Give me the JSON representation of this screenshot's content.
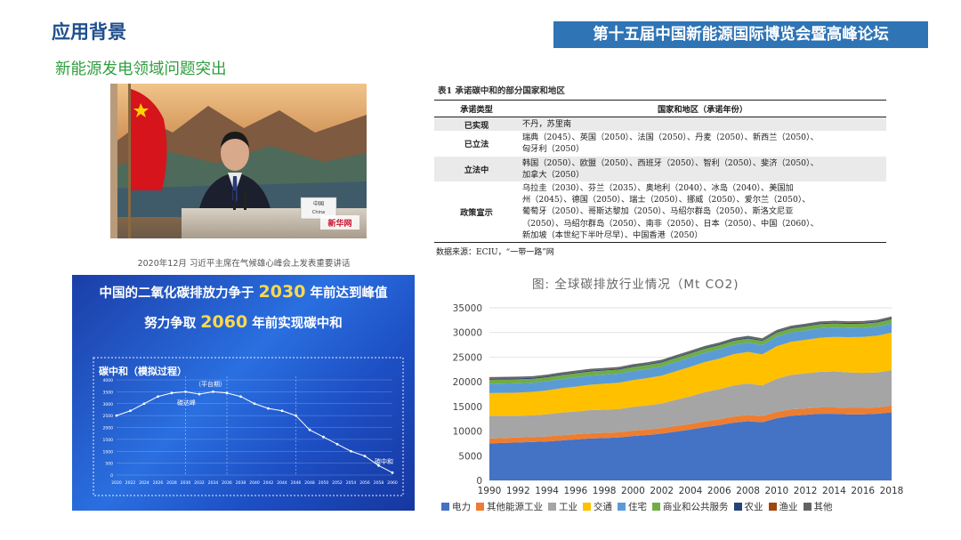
{
  "header": {
    "left_title": "应用背景",
    "right_title": "第十五届中国新能源国际博览会暨高峰论坛"
  },
  "subtitle": "新能源发电领域问题突出",
  "photo": {
    "caption": "2020年12月 习近平主席在气候雄心峰会上发表重要讲话",
    "nameplate": "中国\nChina",
    "watermark": "新华网"
  },
  "table": {
    "title": "表1  承诺碳中和的部分国家和地区",
    "headers": [
      "承诺类型",
      "国家和地区（承诺年份）"
    ],
    "rows": [
      {
        "type": "已实现",
        "lines": [
          "不丹，苏里南"
        ]
      },
      {
        "type": "已立法",
        "lines": [
          "瑞典（2045）、英国（2050）、法国（2050）、丹麦（2050）、新西兰（2050）、",
          "匈牙利（2050）"
        ]
      },
      {
        "type": "立法中",
        "lines": [
          "韩国（2050）、欧盟（2050）、西班牙（2050）、智利（2050）、斐济（2050）、",
          "加拿大（2050）"
        ]
      },
      {
        "type": "政策宣示",
        "lines": [
          "乌拉圭（2030）、芬兰（2035）、奥地利（2040）、冰岛（2040）、美国加",
          "州（2045）、德国（2050）、瑞士（2050）、挪威（2050）、爱尔兰（2050）、",
          "葡萄牙（2050）、哥斯达黎加（2050）、马绍尔群岛（2050）、斯洛文尼亚",
          "（2050）、马绍尔群岛（2050）、南非（2050）、日本（2050）、中国（2060）、",
          "新加坡（本世纪下半叶尽早）、中国香港（2050）"
        ]
      }
    ],
    "source": "数据来源：ECIU，“一带一路”网"
  },
  "blue_panel": {
    "line1_pre": "中国的二氧化碳排放力争于",
    "line1_num": "2030",
    "line1_post": "年前达到峰值",
    "line2_pre": "努力争取",
    "line2_num": "2060",
    "line2_post": "年前实现碳中和",
    "sim_title": "碳中和（模拟过程）",
    "labels": {
      "plateau": "（平台期）",
      "peak": "碳达峰",
      "neutral": "碳中和"
    },
    "chart_data": {
      "type": "line",
      "x": [
        2020,
        2022,
        2024,
        2026,
        2028,
        2030,
        2032,
        2034,
        2036,
        2038,
        2040,
        2042,
        2044,
        2046,
        2048,
        2050,
        2052,
        2054,
        2056,
        2058,
        2060
      ],
      "y": [
        2500,
        2700,
        3000,
        3300,
        3450,
        3500,
        3400,
        3500,
        3450,
        3300,
        3000,
        2800,
        2700,
        2500,
        1900,
        1600,
        1300,
        1000,
        800,
        400,
        100
      ],
      "yticks": [
        0,
        500,
        1000,
        1500,
        2000,
        2500,
        3000,
        3500,
        4000
      ],
      "ylim": [
        0,
        4000
      ]
    }
  },
  "area_chart": {
    "title": "图:  全球碳排放行业情况（Mt CO2)",
    "chart_data": {
      "type": "area",
      "x": [
        1990,
        1991,
        1992,
        1993,
        1994,
        1995,
        1996,
        1997,
        1998,
        1999,
        2000,
        2001,
        2002,
        2003,
        2004,
        2005,
        2006,
        2007,
        2008,
        2009,
        2010,
        2011,
        2012,
        2013,
        2014,
        2015,
        2016,
        2017,
        2018
      ],
      "xticks": [
        1990,
        1992,
        1994,
        1996,
        1998,
        2000,
        2002,
        2004,
        2006,
        2008,
        2010,
        2012,
        2014,
        2016,
        2018
      ],
      "yticks": [
        0,
        5000,
        10000,
        15000,
        20000,
        25000,
        30000,
        35000
      ],
      "ylim": [
        0,
        35000
      ],
      "series": [
        {
          "name": "电力",
          "color": "#4472c4",
          "values": [
            7500,
            7600,
            7700,
            7800,
            7900,
            8100,
            8300,
            8500,
            8600,
            8700,
            9000,
            9200,
            9500,
            9900,
            10300,
            10800,
            11200,
            11700,
            12000,
            11800,
            12600,
            13100,
            13300,
            13500,
            13500,
            13400,
            13400,
            13500,
            13800
          ]
        },
        {
          "name": "其他能源工业",
          "color": "#ed7d31",
          "values": [
            1000,
            1000,
            1000,
            1000,
            1000,
            1050,
            1050,
            1050,
            1050,
            1050,
            1100,
            1100,
            1100,
            1150,
            1150,
            1200,
            1200,
            1250,
            1250,
            1250,
            1300,
            1300,
            1300,
            1300,
            1300,
            1300,
            1300,
            1300,
            1350
          ]
        },
        {
          "name": "工业",
          "color": "#a5a5a5",
          "values": [
            4600,
            4500,
            4400,
            4400,
            4500,
            4600,
            4600,
            4700,
            4700,
            4700,
            4800,
            4900,
            5000,
            5300,
            5600,
            5900,
            6100,
            6300,
            6400,
            6200,
            6700,
            7000,
            7100,
            7200,
            7300,
            7200,
            7100,
            7100,
            7200
          ]
        },
        {
          "name": "交通",
          "color": "#ffc000",
          "values": [
            4600,
            4650,
            4700,
            4750,
            4850,
            4950,
            5050,
            5150,
            5250,
            5350,
            5450,
            5550,
            5650,
            5800,
            6000,
            6100,
            6200,
            6350,
            6400,
            6300,
            6600,
            6700,
            6800,
            6900,
            7000,
            7150,
            7300,
            7450,
            7600
          ]
        },
        {
          "name": "住宅",
          "color": "#5b9bd5",
          "values": [
            1900,
            1900,
            1900,
            1850,
            1850,
            1850,
            1900,
            1850,
            1850,
            1850,
            1850,
            1850,
            1850,
            1900,
            1900,
            1900,
            1900,
            1900,
            1900,
            1900,
            1950,
            1900,
            1900,
            1950,
            1900,
            1850,
            1850,
            1850,
            1900
          ]
        },
        {
          "name": "商业和公共服务",
          "color": "#70ad47",
          "values": [
            800,
            800,
            800,
            800,
            800,
            800,
            820,
            820,
            820,
            820,
            820,
            820,
            820,
            820,
            820,
            820,
            820,
            820,
            820,
            820,
            830,
            830,
            830,
            830,
            830,
            830,
            830,
            830,
            850
          ]
        },
        {
          "name": "农业",
          "color": "#264478",
          "values": [
            200,
            200,
            200,
            200,
            200,
            200,
            200,
            200,
            200,
            200,
            200,
            200,
            200,
            200,
            200,
            200,
            200,
            200,
            200,
            200,
            200,
            200,
            200,
            200,
            200,
            200,
            200,
            200,
            200
          ]
        },
        {
          "name": "渔业",
          "color": "#9e480e",
          "values": [
            40,
            40,
            40,
            40,
            40,
            40,
            40,
            40,
            40,
            40,
            40,
            40,
            40,
            40,
            40,
            40,
            40,
            40,
            40,
            40,
            40,
            40,
            40,
            40,
            40,
            40,
            40,
            40,
            40
          ]
        },
        {
          "name": "其他",
          "color": "#636363",
          "values": [
            300,
            300,
            300,
            300,
            300,
            300,
            300,
            300,
            300,
            300,
            300,
            300,
            300,
            300,
            300,
            300,
            300,
            300,
            300,
            300,
            300,
            300,
            300,
            300,
            300,
            300,
            300,
            300,
            300
          ]
        }
      ]
    }
  }
}
